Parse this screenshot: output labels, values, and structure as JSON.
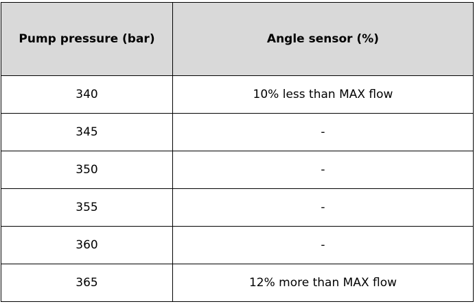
{
  "table": {
    "header": [
      "Pump pressure (bar)",
      "Angle sensor (%)"
    ],
    "rows": [
      [
        "340",
        "10% less than MAX flow"
      ],
      [
        "345",
        "-"
      ],
      [
        "350",
        "-"
      ],
      [
        "355",
        "-"
      ],
      [
        "360",
        "-"
      ],
      [
        "365",
        "12% more than MAX flow"
      ]
    ]
  }
}
